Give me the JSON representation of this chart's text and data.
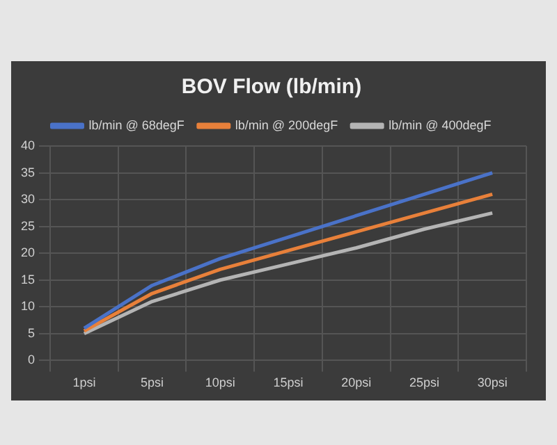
{
  "chart_data": {
    "type": "line",
    "title": "BOV Flow (lb/min)",
    "categories": [
      "1psi",
      "5psi",
      "10psi",
      "15psi",
      "20psi",
      "25psi",
      "30psi"
    ],
    "series": [
      {
        "name": "lb/min @ 68degF",
        "color": "#4a72c8",
        "values": [
          6,
          14,
          19,
          23,
          27,
          31,
          35
        ]
      },
      {
        "name": "lb/min @ 200degF",
        "color": "#e8803a",
        "values": [
          5.5,
          12.5,
          17,
          20.5,
          24,
          27.5,
          31
        ]
      },
      {
        "name": "lb/min @ 400degF",
        "color": "#b4b4b4",
        "values": [
          5,
          11,
          15,
          18,
          21,
          24.5,
          27.5
        ]
      }
    ],
    "ylim": [
      0,
      40
    ],
    "yticks": [
      0,
      5,
      10,
      15,
      20,
      25,
      30,
      35,
      40
    ],
    "grid": true,
    "legend": "top",
    "marker": "none",
    "line_style": "solid"
  }
}
